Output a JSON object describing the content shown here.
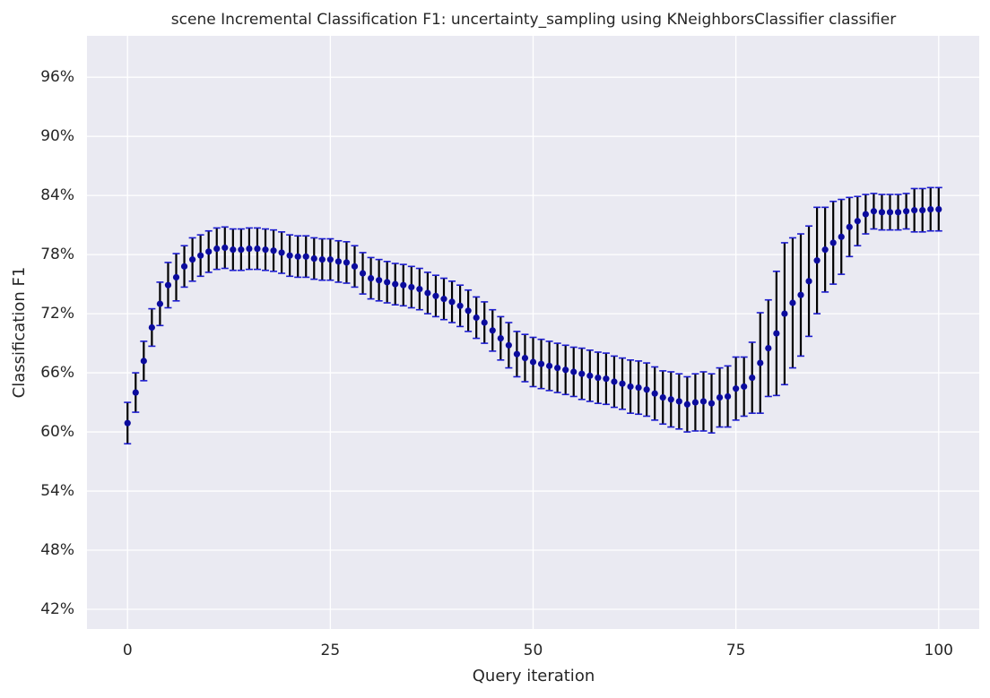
{
  "chart_data": {
    "type": "errorbar",
    "title": "scene Incremental Classification F1: uncertainty_sampling using KNeighborsClassifier classifier",
    "x_label": "Query iteration",
    "y_label": "Classification F1",
    "x": [
      0,
      1,
      2,
      3,
      4,
      5,
      6,
      7,
      8,
      9,
      10,
      11,
      12,
      13,
      14,
      15,
      16,
      17,
      18,
      19,
      20,
      21,
      22,
      23,
      24,
      25,
      26,
      27,
      28,
      29,
      30,
      31,
      32,
      33,
      34,
      35,
      36,
      37,
      38,
      39,
      40,
      41,
      42,
      43,
      44,
      45,
      46,
      47,
      48,
      49,
      50,
      51,
      52,
      53,
      54,
      55,
      56,
      57,
      58,
      59,
      60,
      61,
      62,
      63,
      64,
      65,
      66,
      67,
      68,
      69,
      70,
      71,
      72,
      73,
      74,
      75,
      76,
      77,
      78,
      79,
      80,
      81,
      82,
      83,
      84,
      85,
      86,
      87,
      88,
      89,
      90,
      91,
      92,
      93,
      94,
      95,
      96,
      97,
      98,
      99,
      100
    ],
    "series": [
      {
        "color": "#0b0b9e",
        "error_color": "#000000",
        "cap_color": "#1c1cd0",
        "values": [
          60.9,
          64.0,
          67.2,
          70.6,
          73.0,
          74.9,
          75.7,
          76.8,
          77.5,
          77.9,
          78.3,
          78.6,
          78.7,
          78.5,
          78.5,
          78.6,
          78.6,
          78.5,
          78.4,
          78.2,
          77.9,
          77.8,
          77.8,
          77.6,
          77.5,
          77.5,
          77.3,
          77.2,
          76.8,
          76.1,
          75.6,
          75.4,
          75.2,
          75.0,
          74.9,
          74.7,
          74.5,
          74.1,
          73.8,
          73.5,
          73.2,
          72.8,
          72.3,
          71.6,
          71.1,
          70.3,
          69.5,
          68.8,
          67.9,
          67.5,
          67.1,
          66.9,
          66.7,
          66.5,
          66.3,
          66.1,
          65.9,
          65.7,
          65.5,
          65.4,
          65.1,
          64.9,
          64.6,
          64.5,
          64.3,
          63.9,
          63.5,
          63.3,
          63.1,
          62.8,
          63.0,
          63.1,
          62.9,
          63.5,
          63.6,
          64.4,
          64.6,
          65.5,
          67.0,
          68.5,
          70.0,
          72.0,
          73.1,
          73.9,
          75.3,
          77.4,
          78.5,
          79.2,
          79.8,
          80.8,
          81.4,
          82.1,
          82.4,
          82.3,
          82.3,
          82.3,
          82.4,
          82.5,
          82.5,
          82.6,
          82.6
        ],
        "errors": [
          2.1,
          2.0,
          2.0,
          1.9,
          2.2,
          2.3,
          2.4,
          2.1,
          2.2,
          2.1,
          2.1,
          2.1,
          2.1,
          2.1,
          2.1,
          2.1,
          2.1,
          2.1,
          2.1,
          2.1,
          2.1,
          2.1,
          2.1,
          2.1,
          2.1,
          2.1,
          2.1,
          2.1,
          2.1,
          2.1,
          2.1,
          2.1,
          2.1,
          2.1,
          2.1,
          2.1,
          2.1,
          2.1,
          2.1,
          2.1,
          2.1,
          2.1,
          2.1,
          2.1,
          2.1,
          2.1,
          2.2,
          2.3,
          2.3,
          2.4,
          2.5,
          2.5,
          2.5,
          2.5,
          2.5,
          2.5,
          2.6,
          2.6,
          2.6,
          2.6,
          2.6,
          2.6,
          2.7,
          2.7,
          2.7,
          2.7,
          2.7,
          2.8,
          2.8,
          2.8,
          2.9,
          3.0,
          3.0,
          3.0,
          3.1,
          3.2,
          3.0,
          3.6,
          5.1,
          4.9,
          6.3,
          7.2,
          6.6,
          6.2,
          5.6,
          5.4,
          4.3,
          4.2,
          3.8,
          3.0,
          2.5,
          2.0,
          1.8,
          1.8,
          1.8,
          1.8,
          1.8,
          2.2,
          2.2,
          2.2,
          2.2
        ]
      }
    ],
    "xlim": [
      -5,
      105
    ],
    "xticks": [
      0,
      25,
      50,
      75,
      100
    ],
    "ylim": [
      40,
      100.2
    ],
    "yticks": [
      {
        "value": 42,
        "label": "42%"
      },
      {
        "value": 48,
        "label": "48%"
      },
      {
        "value": 54,
        "label": "54%"
      },
      {
        "value": 60,
        "label": "60%"
      },
      {
        "value": 66,
        "label": "66%"
      },
      {
        "value": 72,
        "label": "72%"
      },
      {
        "value": 78,
        "label": "78%"
      },
      {
        "value": 84,
        "label": "84%"
      },
      {
        "value": 90,
        "label": "90%"
      },
      {
        "value": 96,
        "label": "96%"
      }
    ],
    "grid": true
  }
}
